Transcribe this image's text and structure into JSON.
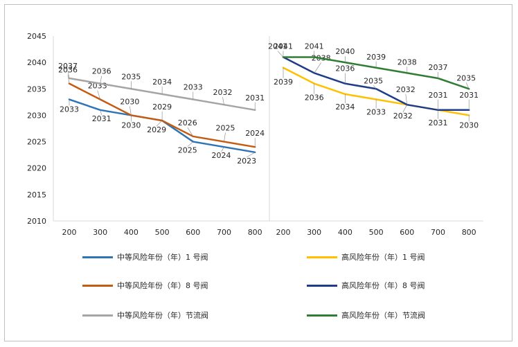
{
  "chart_data": {
    "type": "line",
    "categories": [
      "200",
      "300",
      "400",
      "500",
      "600",
      "700",
      "800"
    ],
    "ylim": [
      2010,
      2045
    ],
    "yticks": [
      "2010",
      "2015",
      "2020",
      "2025",
      "2030",
      "2035",
      "2040",
      "2045"
    ],
    "grid": false,
    "legend_placement": "bottom",
    "panels": [
      {
        "series": [
          {
            "name": "中等风险年份（年）1 号阀",
            "color": "#2E75B6",
            "values": [
              2033,
              2031,
              2030,
              2029,
              2025,
              2024,
              2023
            ]
          },
          {
            "name": "中等风险年份（年）8 号阀",
            "color": "#C55A11",
            "values": [
              2036,
              2033,
              2030,
              2029,
              2026,
              2025,
              2024
            ]
          },
          {
            "name": "中等风险年份（年）节流阀",
            "color": "#A5A5A5",
            "values": [
              2037,
              2036,
              2035,
              2034,
              2033,
              2032,
              2031
            ]
          }
        ]
      },
      {
        "series": [
          {
            "name": "高风险年份（年）1 号阀",
            "color": "#FFC000",
            "values": [
              2039,
              2036,
              2034,
              2033,
              2032,
              2031,
              2030
            ]
          },
          {
            "name": "高风险年份（年）8 号阀",
            "color": "#1F3C88",
            "values": [
              2041,
              2038,
              2036,
              2035,
              2032,
              2031,
              2031
            ]
          },
          {
            "name": "高风险年份（年）节流阀",
            "color": "#2E7D32",
            "values": [
              2041,
              2041,
              2040,
              2039,
              2038,
              2037,
              2035
            ]
          }
        ]
      }
    ]
  },
  "legend": [
    {
      "label": "中等风险年份（年）1 号阀",
      "color": "#2E75B6"
    },
    {
      "label": "高风险年份（年）1 号阀",
      "color": "#FFC000"
    },
    {
      "label": "中等风险年份（年）8 号阀",
      "color": "#C55A11"
    },
    {
      "label": "高风险年份（年）8 号阀",
      "color": "#1F3C88"
    },
    {
      "label": "中等风险年份（年）节流阀",
      "color": "#A5A5A5"
    },
    {
      "label": "高风险年份（年）节流阀",
      "color": "#2E7D32"
    }
  ]
}
